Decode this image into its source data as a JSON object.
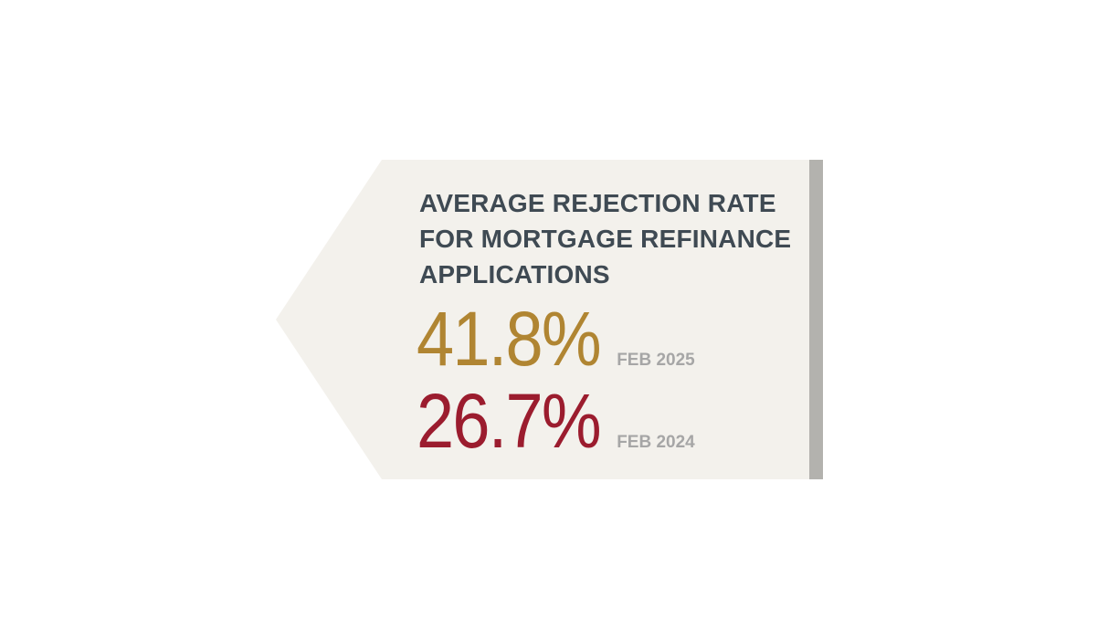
{
  "card": {
    "title": "AVERAGE REJECTION RATE FOR MORTGAGE REFINANCE APPLICATIONS",
    "stats": [
      {
        "value": "41.8%",
        "date": "FEB 2025",
        "color": "#b08532"
      },
      {
        "value": "26.7%",
        "date": "FEB 2024",
        "color": "#9b1c2e"
      }
    ],
    "colors": {
      "background": "#f3f1ec",
      "accent_bar": "#b3b2ae",
      "title": "#3f4a53",
      "date": "#a6a6a6"
    }
  }
}
